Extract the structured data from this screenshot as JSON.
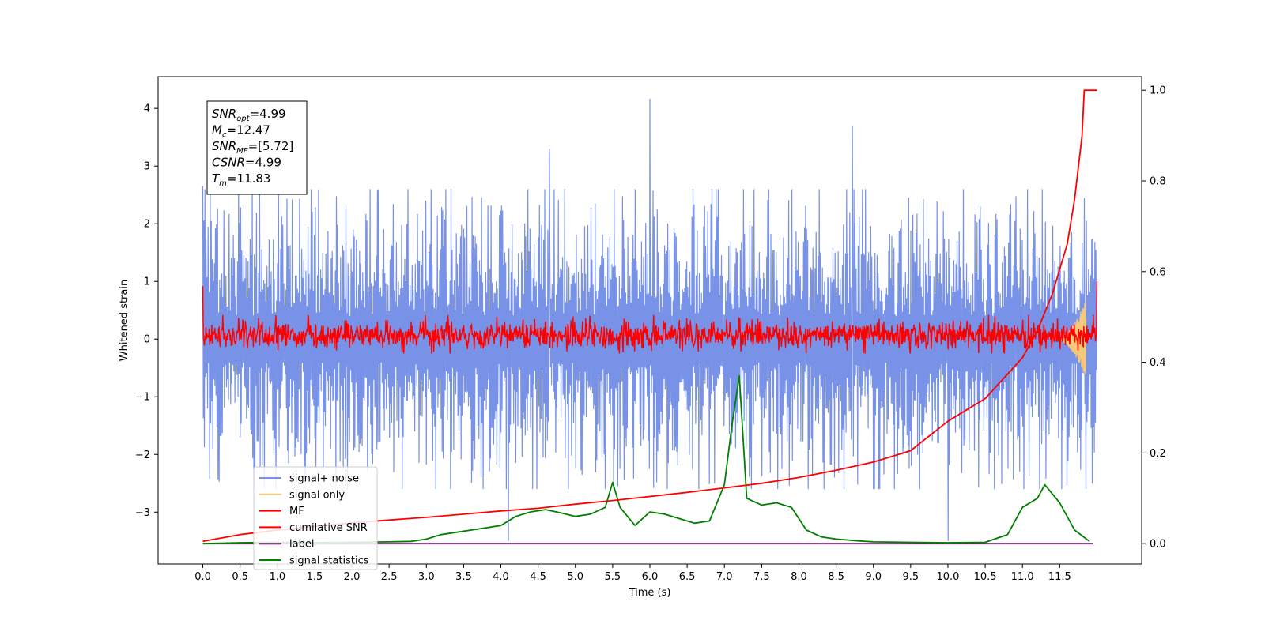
{
  "chart_data": {
    "type": "line",
    "xlabel": "Time (s)",
    "ylabel": "Whitened strain",
    "xlim": [
      -0.6,
      12.6
    ],
    "ylim": [
      -3.9,
      4.55
    ],
    "y2lim": [
      -0.045,
      1.03
    ],
    "x_ticks": [
      0.0,
      0.5,
      1.0,
      1.5,
      2.0,
      2.5,
      3.0,
      3.5,
      4.0,
      4.5,
      5.0,
      5.5,
      6.0,
      6.5,
      7.0,
      7.5,
      8.0,
      8.5,
      9.0,
      9.5,
      10.0,
      10.5,
      11.0,
      11.5
    ],
    "x_tick_labels": [
      "0.0",
      "0.5",
      "1.0",
      "1.5",
      "2.0",
      "2.5",
      "3.0",
      "3.5",
      "4.0",
      "4.5",
      "5.0",
      "5.5",
      "6.0",
      "6.5",
      "7.0",
      "7.5",
      "8.0",
      "8.5",
      "9.0",
      "9.5",
      "10.0",
      "10.5",
      "11.0",
      "11.5"
    ],
    "y_ticks": [
      -3,
      -2,
      -1,
      0,
      1,
      2,
      3,
      4
    ],
    "y_tick_labels": [
      "−3",
      "−2",
      "−1",
      "0",
      "1",
      "2",
      "3",
      "4"
    ],
    "y2_ticks": [
      0.0,
      0.2,
      0.4,
      0.6,
      0.8,
      1.0
    ],
    "y2_tick_labels": [
      "0.0",
      "0.2",
      "0.4",
      "0.6",
      "0.8",
      "1.0"
    ],
    "grid": false,
    "legend_position": "lower-left",
    "annotation": {
      "lines": [
        {
          "base": "SNR",
          "sub": "opt",
          "value": "=4.99"
        },
        {
          "base": "M",
          "sub": "c",
          "value": "=12.47"
        },
        {
          "base": "SNR",
          "sub": "MF",
          "value": "=[5.72]"
        },
        {
          "base": "CSNR",
          "sub": "",
          "value": "=4.99"
        },
        {
          "base": "T",
          "sub": "m",
          "value": "=11.83"
        }
      ]
    },
    "series": [
      {
        "name": "signal+ noise",
        "color": "#7792e6",
        "axis": "left",
        "t_range": [
          0.0,
          12.0
        ],
        "amplitude_typical": 2.6,
        "peaks": [
          [
            0.0,
            2.65
          ],
          [
            6.0,
            4.17
          ],
          [
            8.72,
            3.69
          ],
          [
            4.65,
            3.3
          ],
          [
            10.0,
            -3.5
          ],
          [
            4.1,
            -3.5
          ]
        ]
      },
      {
        "name": "signal only",
        "color": "#f5c87a",
        "axis": "left",
        "t_range": [
          11.4,
          11.85
        ],
        "peak_amplitude": 0.68
      },
      {
        "name": "MF",
        "color": "#ff0000",
        "axis": "left",
        "t_range": [
          0.0,
          12.0
        ],
        "amplitude_typical": 0.25,
        "endpoints": [
          [
            0.0,
            0.92
          ],
          [
            12.0,
            1.0
          ]
        ]
      },
      {
        "name": "cumilative SNR",
        "color": "#ff0000",
        "axis": "right",
        "x": [
          0.0,
          0.5,
          1.0,
          1.5,
          2.0,
          2.5,
          3.0,
          3.5,
          4.0,
          4.5,
          5.0,
          5.5,
          6.0,
          6.5,
          7.0,
          7.5,
          8.0,
          8.5,
          9.0,
          9.5,
          10.0,
          10.5,
          11.0,
          11.2,
          11.4,
          11.6,
          11.7,
          11.8,
          11.83,
          12.0
        ],
        "y": [
          0.005,
          0.02,
          0.03,
          0.038,
          0.046,
          0.052,
          0.058,
          0.065,
          0.072,
          0.078,
          0.087,
          0.095,
          0.104,
          0.113,
          0.123,
          0.133,
          0.146,
          0.162,
          0.18,
          0.205,
          0.27,
          0.32,
          0.41,
          0.47,
          0.55,
          0.66,
          0.76,
          0.9,
          1.0,
          1.0
        ]
      },
      {
        "name": "label",
        "color": "#6a0f6a",
        "axis": "right",
        "x": [
          0.0,
          11.95
        ],
        "y": [
          0.0,
          0.0
        ]
      },
      {
        "name": "signal statistics",
        "color": "#008000",
        "axis": "right",
        "x": [
          0.0,
          0.5,
          1.0,
          1.5,
          2.0,
          2.5,
          2.8,
          3.0,
          3.2,
          3.4,
          3.6,
          3.8,
          4.0,
          4.2,
          4.4,
          4.6,
          4.8,
          5.0,
          5.2,
          5.4,
          5.5,
          5.6,
          5.8,
          6.0,
          6.2,
          6.4,
          6.6,
          6.8,
          7.0,
          7.1,
          7.2,
          7.3,
          7.5,
          7.7,
          7.9,
          8.1,
          8.3,
          8.5,
          8.8,
          9.0,
          9.5,
          10.0,
          10.5,
          10.8,
          11.0,
          11.2,
          11.3,
          11.5,
          11.7,
          11.9
        ],
        "y": [
          0.0,
          0.002,
          0.003,
          0.002,
          0.003,
          0.004,
          0.005,
          0.01,
          0.02,
          0.025,
          0.03,
          0.035,
          0.04,
          0.06,
          0.07,
          0.075,
          0.068,
          0.06,
          0.065,
          0.08,
          0.135,
          0.08,
          0.04,
          0.07,
          0.065,
          0.055,
          0.045,
          0.05,
          0.13,
          0.26,
          0.37,
          0.1,
          0.085,
          0.09,
          0.08,
          0.03,
          0.015,
          0.01,
          0.006,
          0.004,
          0.003,
          0.002,
          0.003,
          0.02,
          0.08,
          0.1,
          0.13,
          0.09,
          0.03,
          0.005
        ]
      }
    ]
  }
}
